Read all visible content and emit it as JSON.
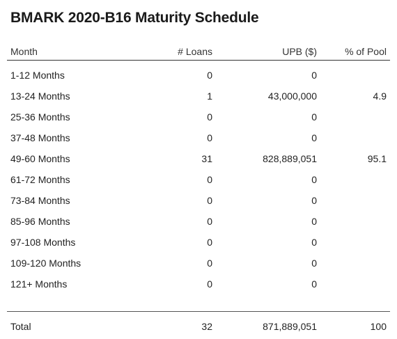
{
  "title": "BMARK 2020-B16 Maturity Schedule",
  "columns": {
    "month": "Month",
    "loans": "# Loans",
    "upb": "UPB ($)",
    "pct": "% of Pool"
  },
  "rows": [
    {
      "month": "1-12 Months",
      "loans": "0",
      "upb": "0",
      "pct": ""
    },
    {
      "month": "13-24 Months",
      "loans": "1",
      "upb": "43,000,000",
      "pct": "4.9"
    },
    {
      "month": "25-36 Months",
      "loans": "0",
      "upb": "0",
      "pct": ""
    },
    {
      "month": "37-48 Months",
      "loans": "0",
      "upb": "0",
      "pct": ""
    },
    {
      "month": "49-60 Months",
      "loans": "31",
      "upb": "828,889,051",
      "pct": "95.1"
    },
    {
      "month": "61-72 Months",
      "loans": "0",
      "upb": "0",
      "pct": ""
    },
    {
      "month": "73-84 Months",
      "loans": "0",
      "upb": "0",
      "pct": ""
    },
    {
      "month": "85-96 Months",
      "loans": "0",
      "upb": "0",
      "pct": ""
    },
    {
      "month": "97-108 Months",
      "loans": "0",
      "upb": "0",
      "pct": ""
    },
    {
      "month": "109-120 Months",
      "loans": "0",
      "upb": "0",
      "pct": ""
    },
    {
      "month": "121+ Months",
      "loans": "0",
      "upb": "0",
      "pct": ""
    }
  ],
  "total": {
    "month": "Total",
    "loans": "32",
    "upb": "871,889,051",
    "pct": "100"
  }
}
